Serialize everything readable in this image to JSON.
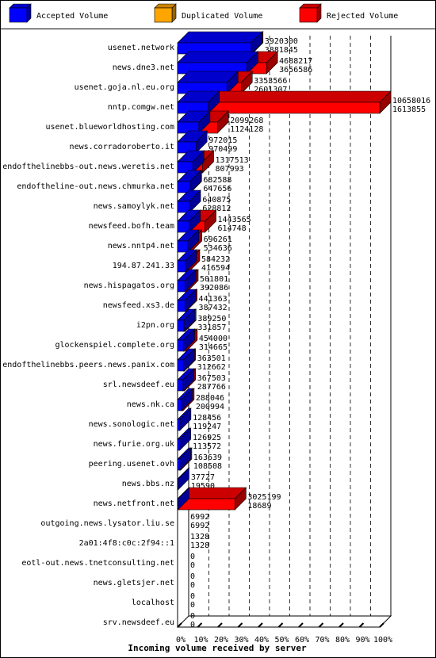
{
  "legend": [
    {
      "label": "Accepted Volume",
      "color": "#0000ff",
      "icon": "blue-cube-icon"
    },
    {
      "label": "Duplicated Volume",
      "color": "#ffa500",
      "icon": "orange-cube-icon"
    },
    {
      "label": "Rejected Volume",
      "color": "#ff0000",
      "icon": "red-cube-icon"
    }
  ],
  "chart_data": {
    "type": "bar",
    "orientation": "horizontal",
    "stacked": true,
    "xlabel": "Incoming volume received by server",
    "xlim": [
      0,
      100
    ],
    "x_ticks": [
      "0%",
      "10%",
      "20%",
      "30%",
      "40%",
      "50%",
      "60%",
      "70%",
      "80%",
      "90%",
      "100%"
    ],
    "grid": true,
    "max_total": 10658016,
    "categories": [
      "usenet.network",
      "news.dne3.net",
      "usenet.goja.nl.eu.org",
      "nntp.comgw.net",
      "usenet.blueworldhosting.com",
      "news.corradoroberto.it",
      "endofthelinebbs-out.news.weretis.net",
      "endoftheline-out.news.chmurka.net",
      "news.samoylyk.net",
      "newsfeed.bofh.team",
      "news.nntp4.net",
      "194.87.241.33",
      "news.hispagatos.org",
      "newsfeed.xs3.de",
      "i2pn.org",
      "glockenspiel.complete.org",
      "endofthelinebbs.peers.news.panix.com",
      "srl.newsdeef.eu",
      "news.nk.ca",
      "news.sonologic.net",
      "news.furie.org.uk",
      "peering.usenet.ovh",
      "news.bbs.nz",
      "news.netfront.net",
      "outgoing.news.lysator.liu.se",
      "2a01:4f8:c0c:2f94::1",
      "eotl-out.news.tnetconsulting.net",
      "news.gletsjer.net",
      "localhost",
      "srv.newsdeef.eu"
    ],
    "total_volume": [
      3920300,
      4688217,
      3353566,
      10658016,
      2099268,
      972015,
      1317513,
      682588,
      640875,
      1443565,
      696261,
      584232,
      501801,
      441363,
      389250,
      454000,
      363501,
      367503,
      288046,
      128456,
      126925,
      163639,
      37727,
      3025199,
      6992,
      1328,
      0,
      0,
      0,
      0
    ],
    "accepted_volume": [
      3881845,
      3656586,
      2601307,
      1613855,
      1124128,
      970499,
      807993,
      647656,
      628812,
      614748,
      534636,
      416594,
      392086,
      387432,
      331857,
      314665,
      312662,
      287766,
      200994,
      119247,
      113572,
      108508,
      19590,
      18689,
      6992,
      1328,
      0,
      0,
      0,
      0
    ],
    "series": [
      {
        "name": "Accepted Volume",
        "color": "#0000ff"
      },
      {
        "name": "Duplicated Volume",
        "color": "#ffa500"
      },
      {
        "name": "Rejected Volume",
        "color": "#ff0000"
      }
    ]
  }
}
